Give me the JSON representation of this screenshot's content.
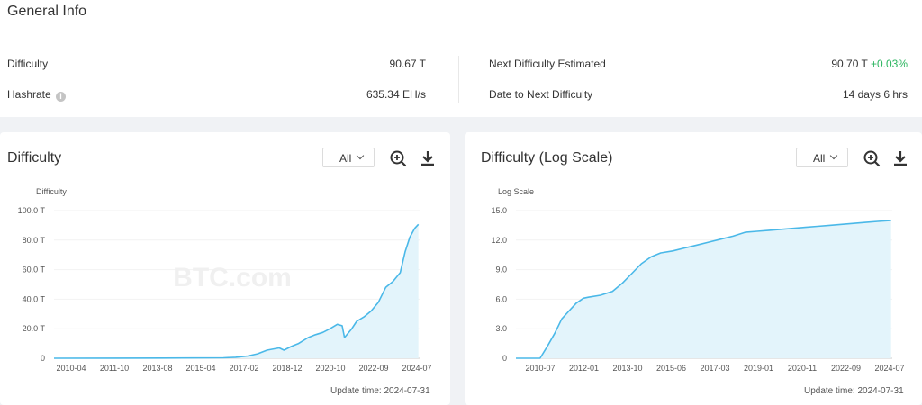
{
  "general": {
    "title": "General Info",
    "difficulty_label": "Difficulty",
    "difficulty_value": "90.67 T",
    "hashrate_label": "Hashrate",
    "hashrate_value": "635.34 EH/s",
    "next_label": "Next Difficulty Estimated",
    "next_value": "90.70 T",
    "next_change": "+0.03%",
    "date_label": "Date to Next Difficulty",
    "date_value": "14 days 6 hrs"
  },
  "colors": {
    "line": "#4ab8e8",
    "area": "#e3f4fb",
    "positive": "#2bb55f",
    "watermark": "#f0f0f0"
  },
  "icons": {
    "help": "help-circle-icon",
    "zoom": "zoom-in-icon",
    "download": "download-icon"
  },
  "watermark": "BTC.com",
  "charts": [
    {
      "title": "Difficulty",
      "range": "All",
      "update": "Update time: 2024-07-31",
      "chart_data": {
        "type": "area",
        "ylabel": "Difficulty",
        "ylim": [
          0,
          100
        ],
        "yticks": [
          "100.0 T",
          "80.0 T",
          "60.0 T",
          "40.0 T",
          "20.0 T",
          "0"
        ],
        "xticks": [
          "2010-04",
          "2011-10",
          "2013-08",
          "2015-04",
          "2017-02",
          "2018-12",
          "2020-10",
          "2022-09",
          "2024-07"
        ],
        "x": [
          2009.5,
          2014.0,
          2016.5,
          2017.0,
          2017.5,
          2017.9,
          2018.3,
          2018.8,
          2019.0,
          2019.3,
          2019.6,
          2020.0,
          2020.3,
          2020.6,
          2020.9,
          2021.2,
          2021.4,
          2021.5,
          2021.8,
          2022.0,
          2022.3,
          2022.6,
          2022.9,
          2023.2,
          2023.5,
          2023.8,
          2024.0,
          2024.2,
          2024.4,
          2024.55
        ],
        "y": [
          0,
          0.1,
          0.3,
          0.7,
          1.5,
          3,
          5.5,
          7,
          5.5,
          8,
          10,
          14,
          16,
          17.5,
          20,
          23,
          22,
          14,
          20,
          25,
          28,
          32,
          38,
          48,
          52,
          58,
          72,
          82,
          88,
          90.7
        ]
      }
    },
    {
      "title": "Difficulty (Log Scale)",
      "range": "All",
      "update": "Update time: 2024-07-31",
      "chart_data": {
        "type": "area",
        "ylabel": "Log Scale",
        "ylim": [
          0,
          15
        ],
        "yticks": [
          "15.0",
          "12.0",
          "9.0",
          "6.0",
          "3.0",
          "0"
        ],
        "xticks": [
          "2010-07",
          "2012-01",
          "2013-10",
          "2015-06",
          "2017-03",
          "2019-01",
          "2020-11",
          "2022-09",
          "2024-07"
        ],
        "x": [
          2009.0,
          2010.0,
          2010.3,
          2010.6,
          2010.9,
          2011.2,
          2011.5,
          2011.8,
          2012.0,
          2012.5,
          2013.0,
          2013.4,
          2013.8,
          2014.2,
          2014.6,
          2015.0,
          2015.5,
          2016.0,
          2016.5,
          2017.0,
          2017.5,
          2018.0,
          2018.5,
          2019.0,
          2019.5,
          2020.0,
          2020.5,
          2021.0,
          2021.5,
          2022.0,
          2022.5,
          2023.0,
          2023.5,
          2024.0,
          2024.55
        ],
        "y": [
          0,
          0,
          1.2,
          2.5,
          4.0,
          4.8,
          5.6,
          6.1,
          6.2,
          6.4,
          6.8,
          7.6,
          8.6,
          9.6,
          10.3,
          10.7,
          10.9,
          11.2,
          11.5,
          11.8,
          12.1,
          12.4,
          12.8,
          12.9,
          13.0,
          13.1,
          13.2,
          13.3,
          13.4,
          13.5,
          13.6,
          13.7,
          13.8,
          13.9,
          14.0
        ]
      }
    }
  ]
}
